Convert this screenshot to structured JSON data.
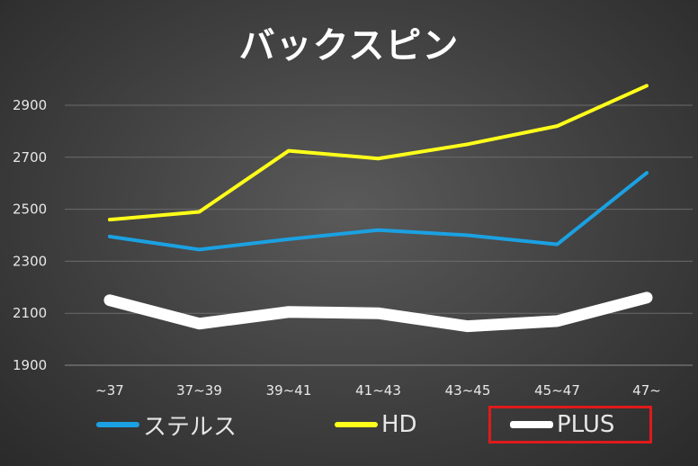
{
  "chart_data": {
    "type": "line",
    "title": "バックスピン",
    "categories": [
      "~37",
      "37~39",
      "39~41",
      "41~43",
      "43~45",
      "45~47",
      "47~"
    ],
    "yticks": [
      1900,
      2100,
      2300,
      2500,
      2700,
      2900
    ],
    "ylim": [
      1900,
      3000
    ],
    "grid": true,
    "legend_position": "bottom",
    "series": [
      {
        "name": "ステルス",
        "color": "#1ba1e2",
        "values": [
          2395,
          2345,
          2385,
          2420,
          2400,
          2365,
          2640
        ]
      },
      {
        "name": "HD",
        "color": "#ffff1a",
        "values": [
          2460,
          2490,
          2725,
          2695,
          2750,
          2820,
          2975
        ]
      },
      {
        "name": "PLUS",
        "color": "#ffffff",
        "values": [
          2150,
          2060,
          2105,
          2100,
          2050,
          2070,
          2160
        ]
      }
    ]
  }
}
